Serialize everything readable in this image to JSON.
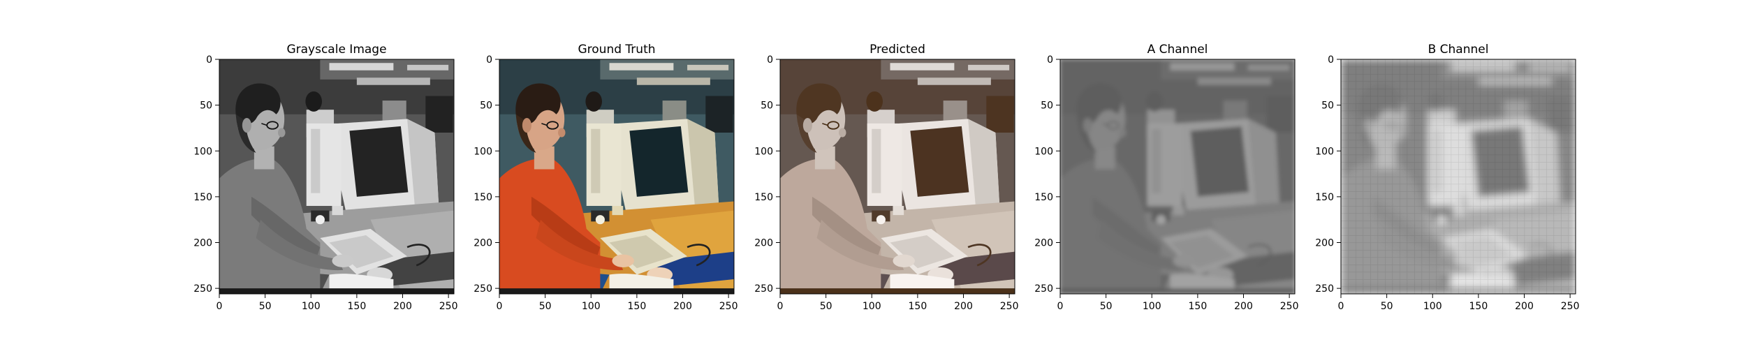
{
  "figure": {
    "panels": [
      {
        "title": "Grayscale Image",
        "image": {
          "mode": "grayscale",
          "description_icon": "photo-grayscale"
        },
        "x_ticks": [
          "0",
          "50",
          "100",
          "150",
          "200",
          "250"
        ],
        "y_ticks": [
          "0",
          "50",
          "100",
          "150",
          "200",
          "250"
        ]
      },
      {
        "title": "Ground Truth",
        "image": {
          "mode": "color",
          "description_icon": "photo-color"
        },
        "x_ticks": [
          "0",
          "50",
          "100",
          "150",
          "200",
          "250"
        ],
        "y_ticks": [
          "0",
          "50",
          "100",
          "150",
          "200",
          "250"
        ]
      },
      {
        "title": "Predicted",
        "image": {
          "mode": "desaturated-color",
          "description_icon": "photo-predicted"
        },
        "x_ticks": [
          "0",
          "50",
          "100",
          "150",
          "200",
          "250"
        ],
        "y_ticks": [
          "0",
          "50",
          "100",
          "150",
          "200",
          "250"
        ]
      },
      {
        "title": "A Channel",
        "image": {
          "mode": "a-channel",
          "description_icon": "photo-a-channel"
        },
        "x_ticks": [
          "0",
          "50",
          "100",
          "150",
          "200",
          "250"
        ],
        "y_ticks": [
          "0",
          "50",
          "100",
          "150",
          "200",
          "250"
        ]
      },
      {
        "title": "B Channel",
        "image": {
          "mode": "b-channel",
          "description_icon": "photo-b-channel"
        },
        "x_ticks": [
          "0",
          "50",
          "100",
          "150",
          "200",
          "250"
        ],
        "y_ticks": [
          "0",
          "50",
          "100",
          "150",
          "200",
          "250"
        ]
      }
    ],
    "axis_range": [
      0,
      256
    ]
  }
}
